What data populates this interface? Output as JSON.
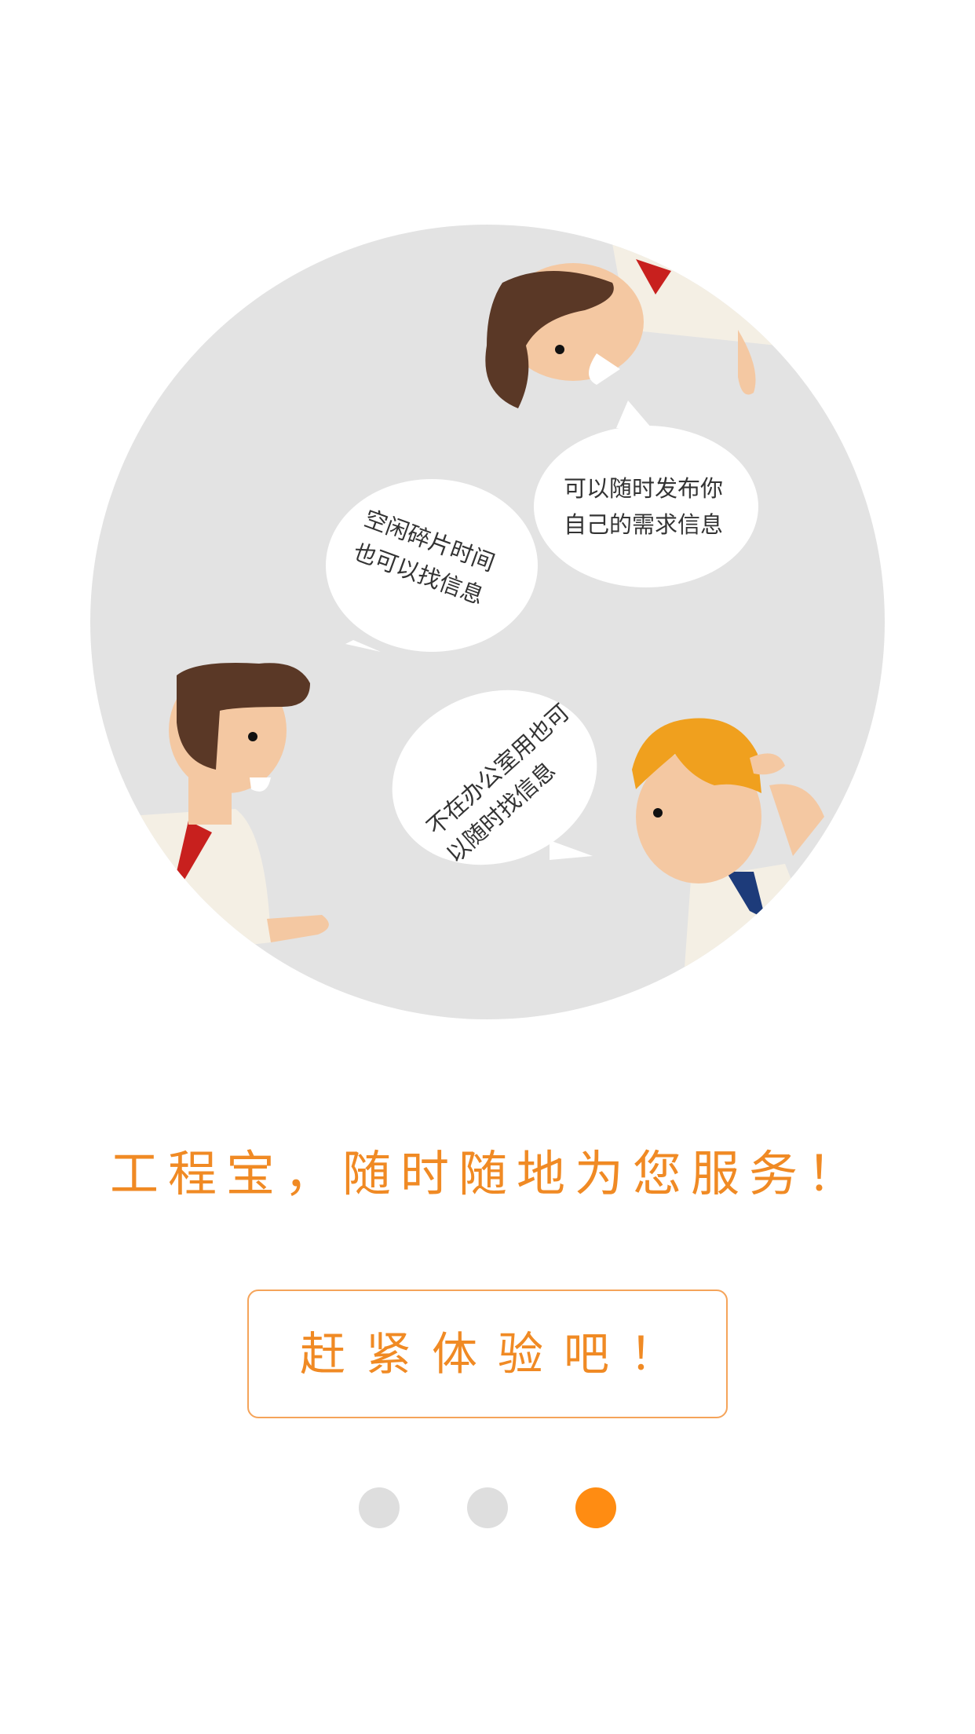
{
  "illustration": {
    "bubbles": [
      {
        "lines": [
          "空闲碎片时间",
          "也可以找信息"
        ]
      },
      {
        "lines": [
          "可以随时发布你",
          "自己的需求信息"
        ]
      },
      {
        "lines": [
          "不在办公室用也可",
          "以随时找信息"
        ]
      }
    ]
  },
  "tagline": "工程宝，随时随地为您服务！",
  "cta_button": {
    "label": "赶紧体验吧！"
  },
  "pager": {
    "total": 3,
    "active_index": 2
  },
  "colors": {
    "accent": "#f08a24",
    "dot_active": "#ff8c12",
    "dot_inactive": "#dedede",
    "circle_bg": "#e3e3e3"
  }
}
